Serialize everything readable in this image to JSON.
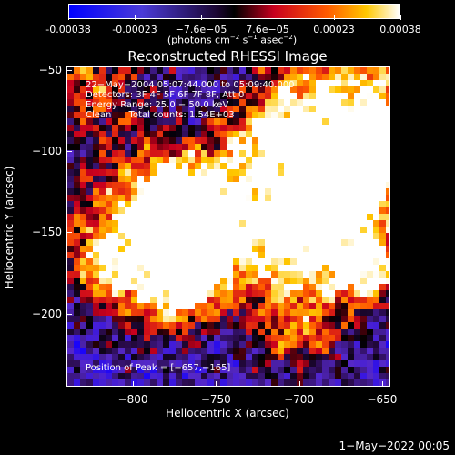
{
  "colorbar": {
    "labels": [
      "-0.00038",
      "-0.00023",
      "−7.6e−05",
      "7.6e−05",
      "0.00023",
      "0.00038"
    ],
    "units_prefix": "(photons cm",
    "units_sup1": "−2",
    "units_mid1": " s",
    "units_sup2": "−1",
    "units_mid2": " asec",
    "units_sup3": "−2",
    "units_suffix": ")"
  },
  "chart_data": {
    "type": "heatmap",
    "title": "Reconstructed RHESSI Image",
    "xlabel": "Heliocentric X (arcsec)",
    "ylabel": "Heliocentric Y (arcsec)",
    "xlim": [
      -840,
      -645
    ],
    "ylim": [
      -245,
      -48
    ],
    "x_ticks": [
      "−800",
      "−750",
      "−700",
      "−650"
    ],
    "y_ticks": [
      "−50",
      "−100",
      "−150",
      "−200"
    ],
    "colorbar_range": [
      -0.00038,
      0.00038
    ],
    "peak": [
      -657,
      -165
    ]
  },
  "info": {
    "line1": "22−May−2004 05:07:44.000 to 05:09:40.000",
    "line2": "Detectors: 3F 4F 5F 6F 7F 8F, Att 0",
    "line3": "Energy Range: 25.0 − 50.0 keV",
    "line4": "Clean      Total counts: 1.54E+03",
    "peak_text": "Position of Peak = [−657,−165]"
  },
  "footer": {
    "date": "1−May−2022 00:05"
  },
  "colors": {
    "low": "#1a00ff",
    "mid_low": "#6a2ab8",
    "mid": "#000000",
    "mid_high": "#c8001e",
    "high": "#ffffff"
  }
}
